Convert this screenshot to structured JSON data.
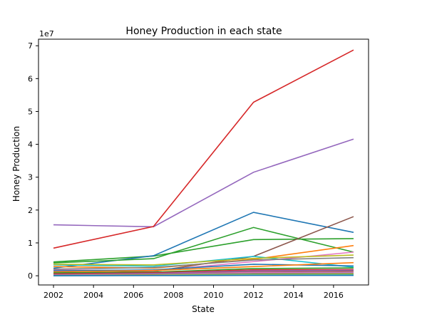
{
  "chart_data": {
    "type": "line",
    "title": "Honey Production in each state",
    "xlabel": "State",
    "ylabel": "Honey Production",
    "y_offset_label": "1e7",
    "y_scale": 10000000,
    "xlim": [
      2001.25,
      2017.75
    ],
    "ylim": [
      -2800000,
      72000000
    ],
    "x_ticks": [
      2002,
      2004,
      2006,
      2008,
      2010,
      2012,
      2014,
      2016
    ],
    "y_ticks": [
      0,
      10000000,
      20000000,
      30000000,
      40000000,
      50000000,
      60000000,
      70000000
    ],
    "y_tick_labels": [
      "0",
      "1",
      "2",
      "3",
      "4",
      "5",
      "6",
      "7"
    ],
    "grid": false,
    "x": [
      2002,
      2007,
      2012,
      2017
    ],
    "series": [
      {
        "color": "#2ca02c",
        "values": [
          4200000,
          6000000,
          11000000,
          11300000
        ]
      },
      {
        "color": "#1f77b4",
        "values": [
          2300000,
          6100000,
          19300000,
          13200000
        ]
      },
      {
        "color": "#2ca02c",
        "values": [
          3900000,
          5200000,
          14700000,
          7200000
        ]
      },
      {
        "color": "#8c564b",
        "values": [
          800000,
          1300000,
          5900000,
          18000000
        ]
      },
      {
        "color": "#ff7f0e",
        "values": [
          2800000,
          2300000,
          5000000,
          9200000
        ]
      },
      {
        "color": "#17becf",
        "values": [
          3300000,
          2900000,
          5900000,
          2600000
        ]
      },
      {
        "color": "#e377c2",
        "values": [
          1800000,
          1500000,
          4300000,
          7200000
        ]
      },
      {
        "color": "#bcbd22",
        "values": [
          3500000,
          3300000,
          5300000,
          6300000
        ]
      },
      {
        "color": "#7f7f7f",
        "values": [
          2000000,
          2500000,
          4800000,
          5500000
        ]
      },
      {
        "color": "#1f77b4",
        "values": [
          1500000,
          1800000,
          3500000,
          3000000
        ]
      },
      {
        "color": "#ff7f0e",
        "values": [
          1200000,
          1600000,
          2800000,
          4000000
        ]
      },
      {
        "color": "#2ca02c",
        "values": [
          900000,
          1100000,
          2200000,
          2400000
        ]
      },
      {
        "color": "#d62728",
        "values": [
          600000,
          900000,
          1800000,
          1900000
        ]
      },
      {
        "color": "#9467bd",
        "values": [
          400000,
          700000,
          1500000,
          1700000
        ]
      },
      {
        "color": "#8c564b",
        "values": [
          300000,
          500000,
          1200000,
          1400000
        ]
      },
      {
        "color": "#e377c2",
        "values": [
          200000,
          400000,
          1000000,
          1100000
        ]
      },
      {
        "color": "#7f7f7f",
        "values": [
          100000,
          300000,
          700000,
          800000
        ]
      },
      {
        "color": "#bcbd22",
        "values": [
          50000,
          200000,
          400000,
          500000
        ]
      },
      {
        "color": "#17becf",
        "values": [
          20000,
          100000,
          200000,
          250000
        ]
      },
      {
        "color": "#1f77b4",
        "values": [
          10000,
          50000,
          100000,
          120000
        ]
      },
      {
        "color": "#9467bd",
        "values": [
          15500000,
          14900000,
          31500000,
          41600000
        ]
      },
      {
        "color": "#d62728",
        "values": [
          8400000,
          15000000,
          52800000,
          68700000
        ]
      }
    ]
  }
}
